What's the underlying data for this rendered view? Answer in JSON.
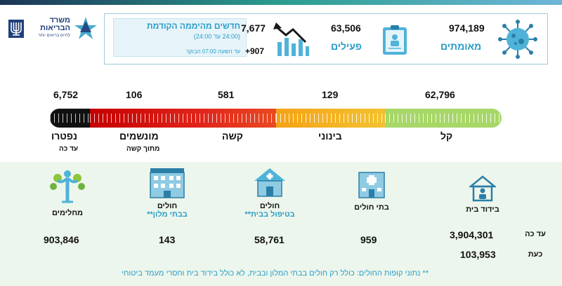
{
  "logo": {
    "ministry_line1": "משרד",
    "ministry_line2": "הבריאות",
    "tagline": "לחיים בריאים יותר"
  },
  "header": {
    "new_cases": {
      "title": "חדשים מהיממה הקודמת",
      "subtitle": "(24:00 עד 24:00)",
      "update_text": "עד השעה 07:00 הבוקר",
      "value": "7,677",
      "delta": "+907"
    },
    "active": {
      "value": "63,506",
      "label": "פעילים"
    },
    "confirmed": {
      "value": "974,189",
      "label": "מאומתים"
    }
  },
  "severity": {
    "deceased": {
      "value": "6,752",
      "label": "נפטרו",
      "sub": "עד כה"
    },
    "ventilated": {
      "value": "106",
      "label": "מונשמים",
      "sub": "מתוך קשה"
    },
    "severe": {
      "value": "581",
      "label": "קשה"
    },
    "moderate": {
      "value": "129",
      "label": "בינוני"
    },
    "mild": {
      "value": "62,796",
      "label": "קל"
    },
    "colors": {
      "black": "#111111",
      "red": "#e1251b",
      "yellow": "#f5b323",
      "green": "#a7d767"
    }
  },
  "panel": {
    "recovered": {
      "label": "מחלימים",
      "value": "903,846"
    },
    "hotels": {
      "label1": "חולים",
      "label2": "בבתי מלון**",
      "value": "143"
    },
    "home_care": {
      "label1": "חולים",
      "label2": "בטיפול בבית**",
      "value": "58,761"
    },
    "hospitals": {
      "label": "בתי חולים",
      "value": "959"
    },
    "home_isolation": {
      "label": "בידוד בית",
      "so_far_label": "עד כה",
      "so_far_value": "3,904,301",
      "now_label": "כעת",
      "now_value": "103,953"
    },
    "footnote": "** נתוני קופות החולים: כולל רק חולים בבתי המלון ובבית, לא כולל בידוד בית וחסרי מעמד ביטוחי"
  }
}
